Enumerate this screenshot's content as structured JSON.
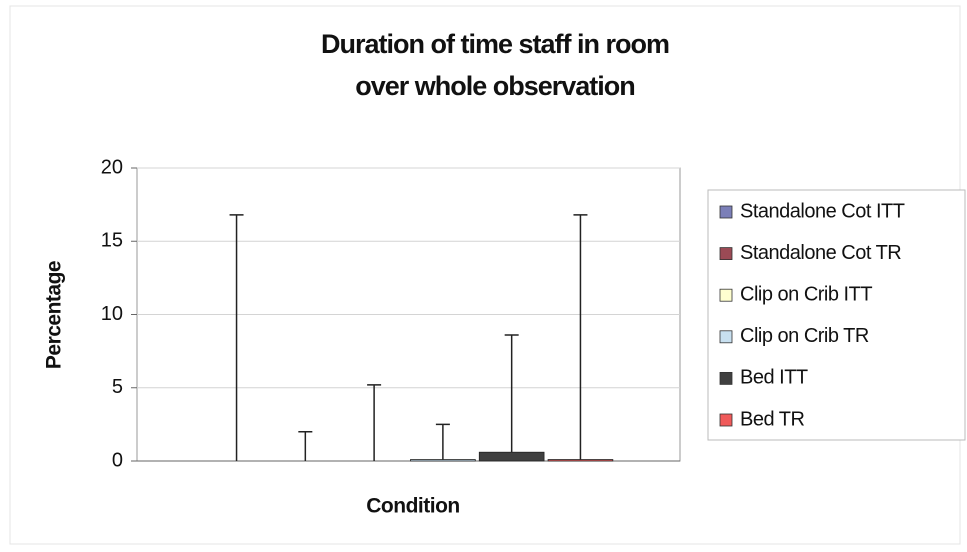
{
  "chart_data": {
    "type": "bar",
    "title": [
      "Duration of time staff in room",
      "over whole observation"
    ],
    "x_label": "Condition",
    "y_label": "Percentage",
    "categories": [
      null
    ],
    "series": [
      {
        "name": "Standalone Cot ITT",
        "color": "#7b7fb8",
        "values": [
          0
        ],
        "errors": [
          16.8
        ]
      },
      {
        "name": "Standalone Cot TR",
        "color": "#9b4a55",
        "values": [
          0
        ],
        "errors": [
          2
        ]
      },
      {
        "name": "Clip on Crib ITT",
        "color": "#ffffd0",
        "values": [
          0
        ],
        "errors": [
          5.2
        ]
      },
      {
        "name": "Clip on Crib TR",
        "color": "#c8e0f0",
        "values": [
          0.1
        ],
        "errors": [
          2.4
        ]
      },
      {
        "name": "Bed ITT",
        "color": "#404040",
        "values": [
          0.6
        ],
        "errors": [
          8
        ]
      },
      {
        "name": "Bed TR",
        "color": "#f05a5a",
        "values": [
          0.1
        ],
        "errors": [
          16.7
        ]
      }
    ],
    "ylim": [
      0,
      20
    ],
    "yticks": [
      0,
      5,
      10,
      15,
      20
    ],
    "grid": true,
    "legend": "right"
  }
}
